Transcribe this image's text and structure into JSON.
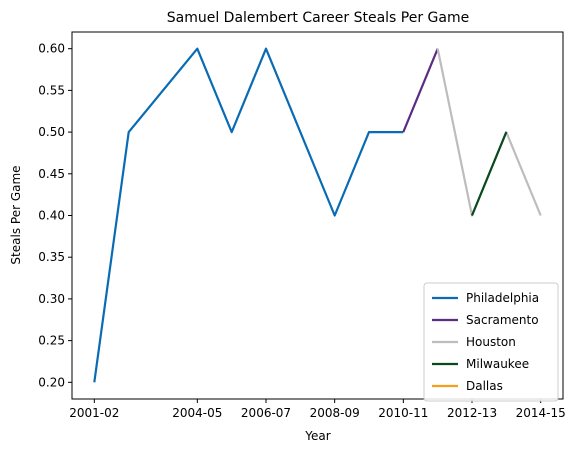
{
  "chart_data": {
    "type": "line",
    "title": "Samuel Dalembert Career Steals Per Game",
    "xlabel": "Year",
    "ylabel": "Steals Per Game",
    "x_tick_labels": [
      "2001-02",
      "2004-05",
      "2006-07",
      "2008-09",
      "2010-11",
      "2012-13",
      "2014-15"
    ],
    "y_tick_labels": [
      "0.20",
      "0.25",
      "0.30",
      "0.35",
      "0.40",
      "0.45",
      "0.50",
      "0.55",
      "0.60"
    ],
    "y_ticks": [
      0.2,
      0.25,
      0.3,
      0.35,
      0.4,
      0.45,
      0.5,
      0.55,
      0.6
    ],
    "ylim": [
      0.18,
      0.62
    ],
    "legend_position": "lower-right",
    "series": [
      {
        "name": "Philadelphia",
        "color": "#0a6bb5",
        "x": [
          "2001-02",
          "2002-03",
          "2004-05",
          "2005-06",
          "2006-07",
          "2008-09",
          "2009-10",
          "2010-11"
        ],
        "y": [
          0.2,
          0.5,
          0.6,
          0.5,
          0.6,
          0.4,
          0.5,
          0.5
        ]
      },
      {
        "name": "Sacramento",
        "color": "#5a2d82",
        "x": [
          "2010-11",
          "2011-12"
        ],
        "y": [
          0.5,
          0.6
        ]
      },
      {
        "name": "Houston",
        "color": "#bdbdbd",
        "x": [
          "2011-12",
          "2012-13",
          "2013-14",
          "2014-15"
        ],
        "y": [
          0.6,
          0.4,
          0.5,
          0.4
        ]
      },
      {
        "name": "Milwaukee",
        "color": "#0b4a1f",
        "x": [
          "2012-13",
          "2013-14"
        ],
        "y": [
          0.4,
          0.5
        ]
      },
      {
        "name": "Dallas",
        "color": "#f5a01a",
        "x": [],
        "y": []
      }
    ]
  }
}
